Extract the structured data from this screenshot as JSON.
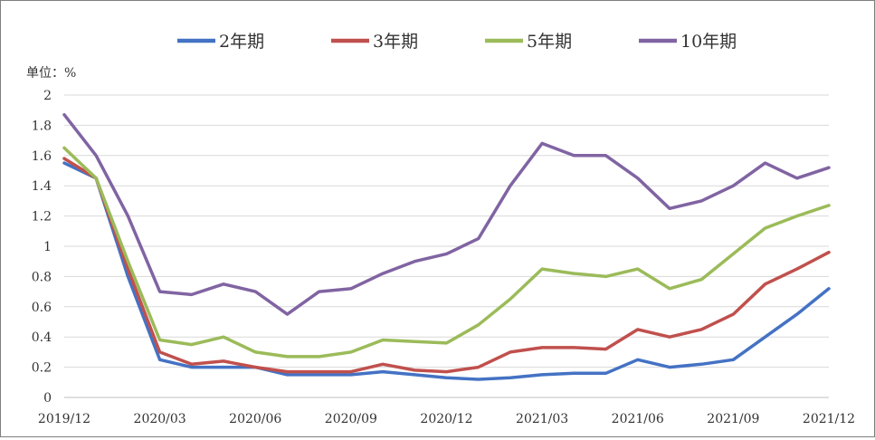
{
  "chart_data": {
    "type": "line",
    "unit_label": "单位：%",
    "y_ticks": [
      "0",
      "0.2",
      "0.4",
      "0.6",
      "0.8",
      "1",
      "1.2",
      "1.4",
      "1.6",
      "1.8",
      "2"
    ],
    "ylim": [
      0,
      2
    ],
    "x_ticks": [
      "2019/12",
      "2020/03",
      "2020/06",
      "2020/09",
      "2020/12",
      "2021/03",
      "2021/06",
      "2021/09",
      "2021/12"
    ],
    "x": [
      "2019/12",
      "2020/01",
      "2020/02",
      "2020/03",
      "2020/04",
      "2020/05",
      "2020/06",
      "2020/07",
      "2020/08",
      "2020/09",
      "2020/10",
      "2020/11",
      "2020/12",
      "2021/01",
      "2021/02",
      "2021/03",
      "2021/04",
      "2021/05",
      "2021/06",
      "2021/07",
      "2021/08",
      "2021/09",
      "2021/10",
      "2021/11",
      "2021/12"
    ],
    "grid": "horizontal",
    "legend_position": "top",
    "series": [
      {
        "name": "2年期",
        "color": "#4472c4",
        "values": [
          1.55,
          1.45,
          0.8,
          0.25,
          0.2,
          0.2,
          0.2,
          0.15,
          0.15,
          0.15,
          0.17,
          0.15,
          0.13,
          0.12,
          0.13,
          0.15,
          0.16,
          0.16,
          0.25,
          0.2,
          0.22,
          0.25,
          0.4,
          0.55,
          0.72
        ]
      },
      {
        "name": "3年期",
        "color": "#c0504d",
        "values": [
          1.58,
          1.45,
          0.85,
          0.3,
          0.22,
          0.24,
          0.2,
          0.17,
          0.17,
          0.17,
          0.22,
          0.18,
          0.17,
          0.2,
          0.3,
          0.33,
          0.33,
          0.32,
          0.45,
          0.4,
          0.45,
          0.55,
          0.75,
          0.85,
          0.96
        ]
      },
      {
        "name": "5年期",
        "color": "#9bbb59",
        "values": [
          1.65,
          1.45,
          0.9,
          0.38,
          0.35,
          0.4,
          0.3,
          0.27,
          0.27,
          0.3,
          0.38,
          0.37,
          0.36,
          0.48,
          0.65,
          0.85,
          0.82,
          0.8,
          0.85,
          0.72,
          0.78,
          0.95,
          1.12,
          1.2,
          1.27
        ]
      },
      {
        "name": "10年期",
        "color": "#8064a2",
        "values": [
          1.87,
          1.6,
          1.2,
          0.7,
          0.68,
          0.75,
          0.7,
          0.55,
          0.7,
          0.72,
          0.82,
          0.9,
          0.95,
          1.05,
          1.4,
          1.68,
          1.6,
          1.6,
          1.45,
          1.25,
          1.3,
          1.4,
          1.55,
          1.45,
          1.52
        ]
      }
    ]
  }
}
